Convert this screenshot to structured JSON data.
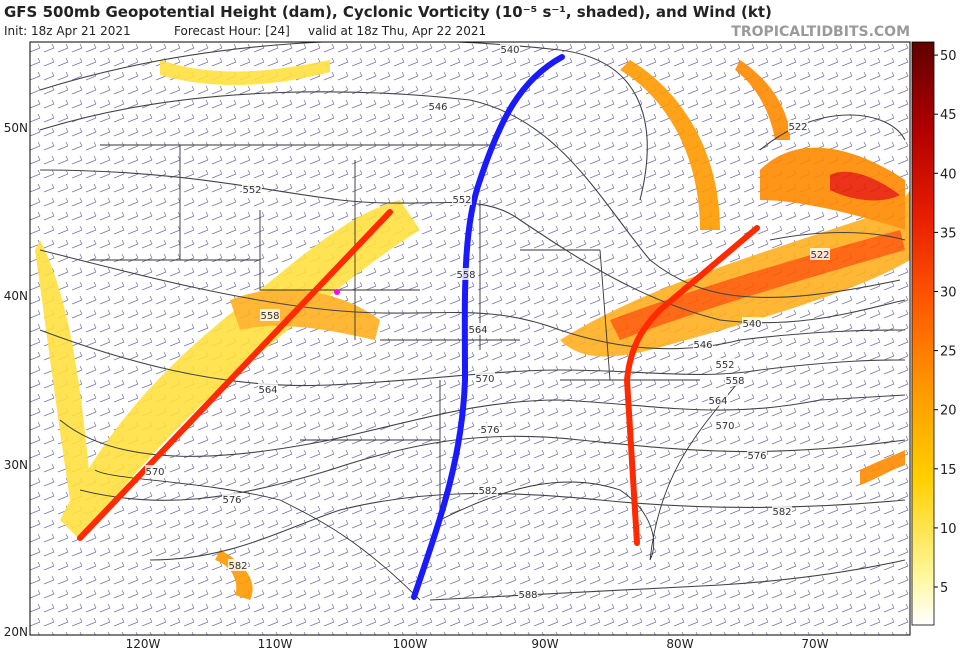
{
  "header": {
    "title": "GFS 500mb Geopotential Height (dam), Cyclonic Vorticity (10⁻⁵ s⁻¹, shaded), and Wind (kt)",
    "init": "Init: 18z Apr 21 2021",
    "forecast_hour": "Forecast Hour: [24]",
    "valid": "valid at 18z Thu, Apr 22 2021",
    "credit": "TROPICALTIDBITS.COM"
  },
  "map": {
    "lat_labels": [
      "50N",
      "40N",
      "30N",
      "20N"
    ],
    "lon_labels": [
      "120W",
      "110W",
      "100W",
      "90W",
      "80W",
      "70W"
    ],
    "contour_labels": [
      "540",
      "546",
      "552",
      "558",
      "564",
      "570",
      "576",
      "582",
      "588",
      "582",
      "576",
      "570",
      "564",
      "558",
      "552",
      "522",
      "522",
      "540",
      "546",
      "552",
      "558",
      "564",
      "570",
      "576",
      "582"
    ]
  },
  "colorbar": {
    "labels": [
      "5",
      "10",
      "15",
      "20",
      "25",
      "30",
      "35",
      "40",
      "45",
      "50"
    ]
  }
}
